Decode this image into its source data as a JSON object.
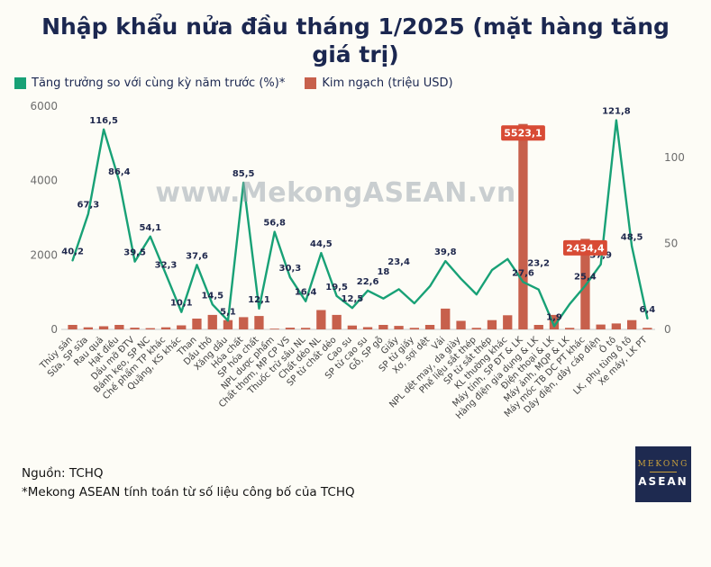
{
  "page": {
    "title": "Nhập khẩu nửa đầu tháng 1/2025 (mặt hàng tăng giá trị)",
    "watermark": "www.MekongASEAN.vn",
    "source_line1": "Nguồn: TCHQ",
    "source_line2": "*Mekong ASEAN tính toán từ số liệu công bố của TCHQ",
    "logo": {
      "line1": "MEKONG",
      "line2": "ASEAN"
    }
  },
  "legend": [
    {
      "label": "Tăng trưởng so với cùng kỳ năm trước (%)*",
      "color": "#18a176"
    },
    {
      "label": "Kim ngạch (triệu USD)",
      "color": "#c7604c"
    }
  ],
  "chart_data": {
    "type": "bar+line",
    "title": "Nhập khẩu nửa đầu tháng 1/2025 (mặt hàng tăng giá trị)",
    "categories": [
      "Thủy sản",
      "Sữa, SP sữa",
      "Rau quả",
      "Hạt điều",
      "Dầu mỡ ĐTV",
      "Bánh kẹo, SP NC",
      "Chế phẩm TP khác",
      "Quặng, KS khác",
      "Than",
      "Dầu thô",
      "Xăng dầu",
      "Hóa chất",
      "SP hóa chất",
      "NPL dược phẩm",
      "Chất thơm, MP CP VS",
      "Thuốc trừ sâu NL",
      "Chất dẻo NL",
      "SP từ chất dẻo",
      "Cao su",
      "SP từ cao su",
      "Gỗ, SP gỗ",
      "Giấy",
      "SP từ giấy",
      "Xơ, sợi dệt",
      "Vải",
      "NPL dệt may, da giày",
      "Phế liệu sắt thép",
      "SP từ sắt thép",
      "KL thường khác",
      "Máy tính, SP ĐT & LK",
      "Hàng điện gia dụng & LK",
      "Điện thoại & LK",
      "Máy ảnh, MQP & LK",
      "Máy móc TB DC PT khác",
      "Dây điện, dây cáp điện",
      "Ô tô",
      "LK, phụ tùng ô tô",
      "Xe máy, LK PT"
    ],
    "left_axis": {
      "ticks": [
        0,
        2000,
        4000,
        6000
      ],
      "max": 6000,
      "label": "Kim ngạch (triệu USD)"
    },
    "right_axis": {
      "ticks": [
        0,
        50,
        100
      ],
      "max": 130,
      "label": "Tăng trưởng so với cùng kỳ năm trước (%)*"
    },
    "series": [
      {
        "name": "Tăng trưởng so với cùng kỳ năm trước (%)*",
        "type": "line",
        "axis": "right",
        "color": "#18a176",
        "values": [
          40.2,
          67.3,
          116.5,
          86.4,
          39.5,
          54.1,
          32.3,
          10.1,
          37.6,
          14.5,
          5.1,
          85.5,
          12.1,
          56.8,
          30.3,
          16.4,
          44.5,
          19.5,
          12.5,
          22.6,
          18,
          23.4,
          15.2,
          25.1,
          39.8,
          29.5,
          20.4,
          34.6,
          41,
          27.6,
          23.2,
          1.9,
          14.8,
          25.4,
          37.9,
          121.8,
          48.5,
          6.4
        ],
        "point_labels": [
          "40,2",
          "67,3",
          "116,5",
          "86,4",
          "39,5",
          "54,1",
          "32,3",
          "10,1",
          "37,6",
          "14,5",
          "5,1",
          "85,5",
          "12,1",
          "56,8",
          "30,3",
          "16,4",
          "44,5",
          "19,5",
          "12,5",
          "22,6",
          "18",
          "23,4",
          null,
          null,
          "39,8",
          null,
          null,
          null,
          null,
          "27,6",
          "23,2",
          "1,9",
          null,
          "25,4",
          "37,9",
          "121,8",
          "48,5",
          "6,4"
        ]
      },
      {
        "name": "Kim ngạch (triệu USD)",
        "type": "bar",
        "axis": "left",
        "color": "#c7604c",
        "values": [
          120,
          55,
          85,
          120,
          45,
          35,
          55,
          110,
          290,
          390,
          250,
          330,
          360,
          20,
          45,
          40,
          520,
          390,
          105,
          60,
          120,
          95,
          40,
          120,
          560,
          230,
          40,
          250,
          380,
          5523.1,
          120,
          390,
          40,
          2434.4,
          130,
          160,
          250,
          40
        ],
        "highlight_labels": [
          {
            "index": 29,
            "label": "5523,1",
            "box_color": "#d84b35"
          },
          {
            "index": 33,
            "label": "2434,4",
            "box_color": "#d84b35"
          }
        ]
      }
    ],
    "grid": false,
    "legend_position": "top-left"
  }
}
